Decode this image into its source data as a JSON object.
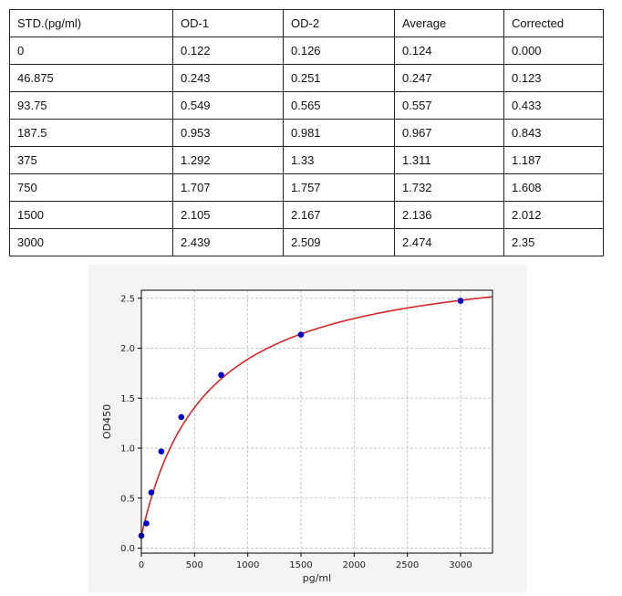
{
  "table": {
    "headers": [
      "STD.(pg/ml)",
      "OD-1",
      "OD-2",
      "Average",
      "Corrected"
    ],
    "rows": [
      [
        "0",
        "0.122",
        "0.126",
        "0.124",
        "0.000"
      ],
      [
        "46.875",
        "0.243",
        "0.251",
        "0.247",
        "0.123"
      ],
      [
        "93.75",
        "0.549",
        "0.565",
        "0.557",
        "0.433"
      ],
      [
        "187.5",
        "0.953",
        "0.981",
        "0.967",
        "0.843"
      ],
      [
        "375",
        "1.292",
        "1.33",
        "1.311",
        "1.187"
      ],
      [
        "750",
        "1.707",
        "1.757",
        "1.732",
        "1.608"
      ],
      [
        "1500",
        "2.105",
        "2.167",
        "2.136",
        "2.012"
      ],
      [
        "3000",
        "2.439",
        "2.509",
        "2.474",
        "2.35"
      ]
    ]
  },
  "chart_data": {
    "type": "scatter",
    "title": "",
    "xlabel": "pg/ml",
    "ylabel": "OD450",
    "xlim": [
      0,
      3300
    ],
    "ylim": [
      -0.05,
      2.58
    ],
    "xticks": [
      0,
      500,
      1000,
      1500,
      2000,
      2500,
      3000
    ],
    "yticks": [
      0.0,
      0.5,
      1.0,
      1.5,
      2.0,
      2.5
    ],
    "xtick_labels": [
      "0",
      "500",
      "1000",
      "1500",
      "2000",
      "2500",
      "3000"
    ],
    "ytick_labels": [
      "0.0",
      "0.5",
      "1.0",
      "1.5",
      "2.0",
      "2.5"
    ],
    "grid": true,
    "points": {
      "x": [
        0,
        46.875,
        93.75,
        187.5,
        375,
        750,
        1500,
        3000
      ],
      "y": [
        0.124,
        0.247,
        0.557,
        0.967,
        1.311,
        1.732,
        2.136,
        2.474
      ]
    },
    "point_color": "#0000cc",
    "fit_curve": {
      "type": "4PL",
      "a": 0.122,
      "d": 2.95,
      "c": 600,
      "b": 1.0,
      "color": "#d62728"
    }
  }
}
